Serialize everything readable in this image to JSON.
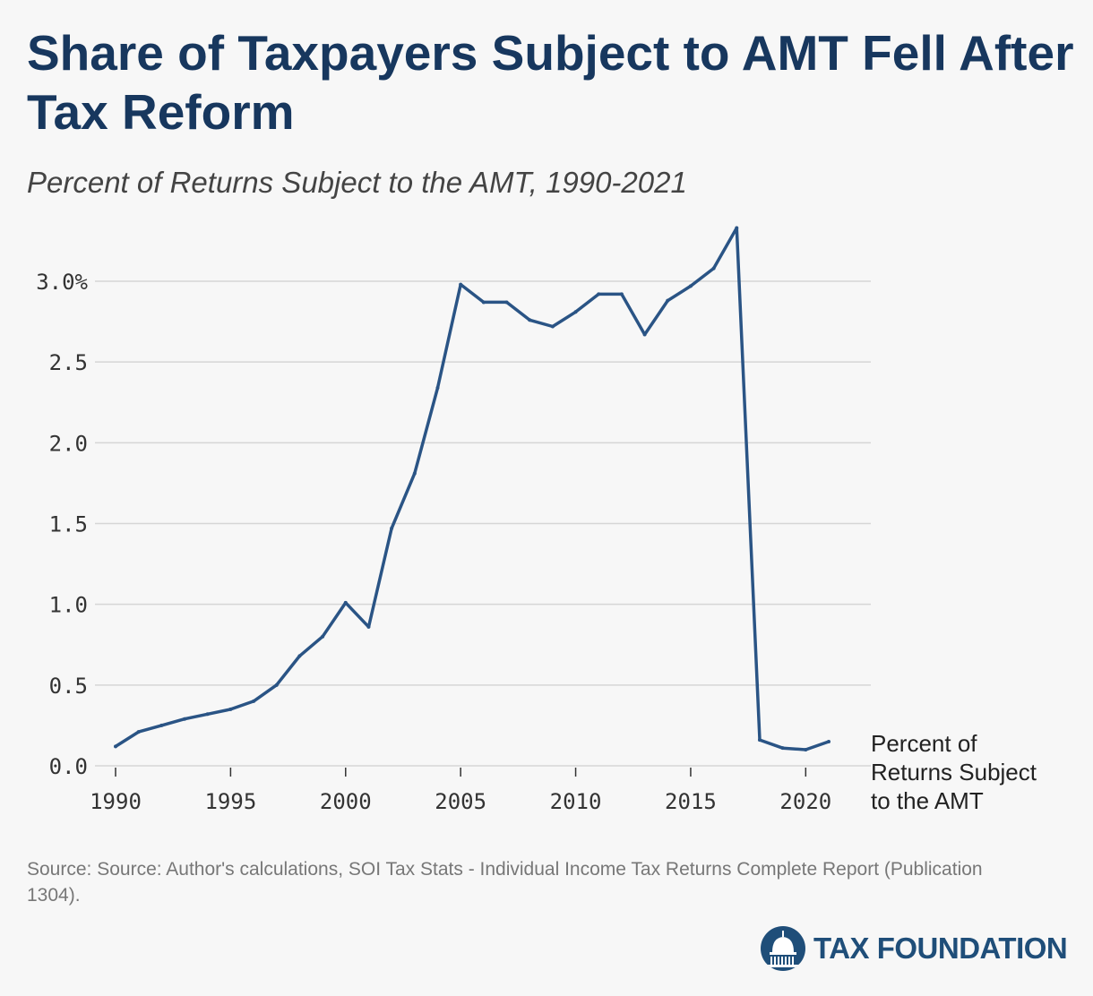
{
  "title": "Share of Taxpayers Subject to AMT Fell After Tax Reform",
  "subtitle": "Percent of Returns Subject to the AMT, 1990-2021",
  "source": "Source: Source: Author's calculations, SOI Tax Stats - Individual Income Tax Returns Complete Report (Publication 1304).",
  "logo": {
    "text": "TAX FOUNDATION",
    "icon": "capitol-dome-icon",
    "color": "#1f4e79"
  },
  "colors": {
    "title": "#17375e",
    "line": "#2a5485",
    "grid": "#d6d6d6"
  },
  "chart_data": {
    "type": "line",
    "title": "Share of Taxpayers Subject to AMT Fell After Tax Reform",
    "subtitle": "Percent of Returns Subject to the AMT, 1990-2021",
    "xlabel": "",
    "ylabel": "",
    "xlim": [
      1990,
      2021
    ],
    "ylim": [
      0,
      3.0
    ],
    "x_ticks": [
      1990,
      1995,
      2000,
      2005,
      2010,
      2015,
      2020
    ],
    "y_ticks": [
      0,
      0.5,
      1.0,
      1.5,
      2.0,
      2.5,
      3.0
    ],
    "y_tick_labels": [
      "0.0",
      "0.5",
      "1.0",
      "1.5",
      "2.0",
      "2.5",
      "3.0%"
    ],
    "grid": true,
    "legend": "end-of-line label",
    "series": [
      {
        "name": "Percent of Returns Subject to the AMT",
        "label_lines": [
          "Percent of",
          "Returns Subject",
          "to the AMT"
        ],
        "color": "#2a5485",
        "x": [
          1990,
          1991,
          1992,
          1993,
          1994,
          1995,
          1996,
          1997,
          1998,
          1999,
          2000,
          2001,
          2002,
          2003,
          2004,
          2005,
          2006,
          2007,
          2008,
          2009,
          2010,
          2011,
          2012,
          2013,
          2014,
          2015,
          2016,
          2017,
          2018,
          2019,
          2020,
          2021
        ],
        "values": [
          0.12,
          0.21,
          0.25,
          0.29,
          0.32,
          0.35,
          0.4,
          0.5,
          0.68,
          0.8,
          1.01,
          0.86,
          1.47,
          1.81,
          2.34,
          2.98,
          2.87,
          2.87,
          2.76,
          2.72,
          2.81,
          2.92,
          2.92,
          2.67,
          2.88,
          2.97,
          3.08,
          3.33,
          0.16,
          0.11,
          0.1,
          0.15
        ]
      }
    ]
  }
}
